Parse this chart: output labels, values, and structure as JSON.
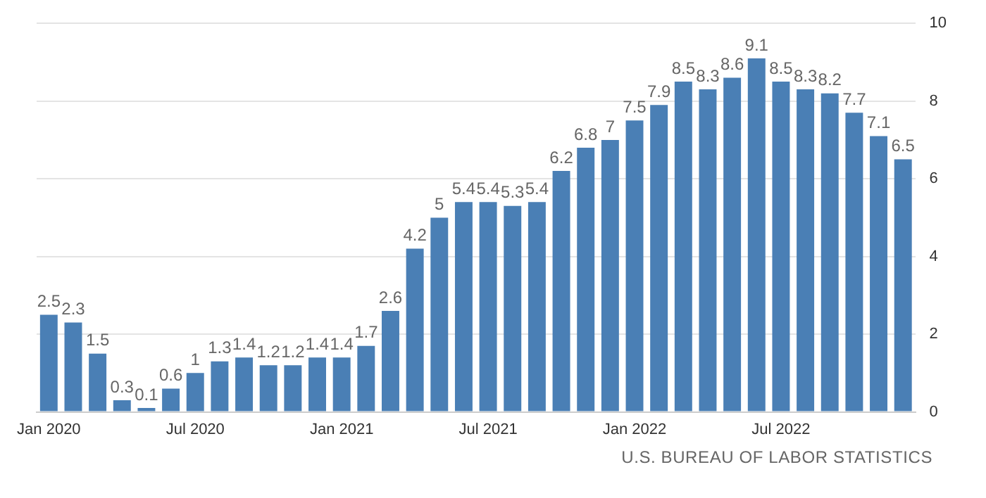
{
  "chart_data": {
    "type": "bar",
    "categories": [
      "Jan 2020",
      null,
      null,
      null,
      null,
      null,
      "Jul 2020",
      null,
      null,
      null,
      null,
      null,
      "Jan 2021",
      null,
      null,
      null,
      null,
      null,
      "Jul 2021",
      null,
      null,
      null,
      null,
      null,
      "Jan 2022",
      null,
      null,
      null,
      null,
      null,
      "Jul 2022",
      null,
      null,
      null,
      null,
      null
    ],
    "values": [
      2.5,
      2.3,
      1.5,
      0.3,
      0.1,
      0.6,
      1,
      1.3,
      1.4,
      1.2,
      1.2,
      1.4,
      1.4,
      1.7,
      2.6,
      4.2,
      5,
      5.4,
      5.4,
      5.3,
      5.4,
      6.2,
      6.8,
      7,
      7.5,
      7.9,
      8.5,
      8.3,
      8.6,
      9.1,
      8.5,
      8.3,
      8.2,
      7.7,
      7.1,
      6.5
    ],
    "color": "#4a7fb5",
    "ylim": [
      0,
      10
    ],
    "yticks": [
      0,
      2,
      4,
      6,
      8,
      10
    ],
    "grid": "y",
    "data_labels": true,
    "annotations": [
      "U.S. BUREAU OF LABOR STATISTICS"
    ]
  }
}
